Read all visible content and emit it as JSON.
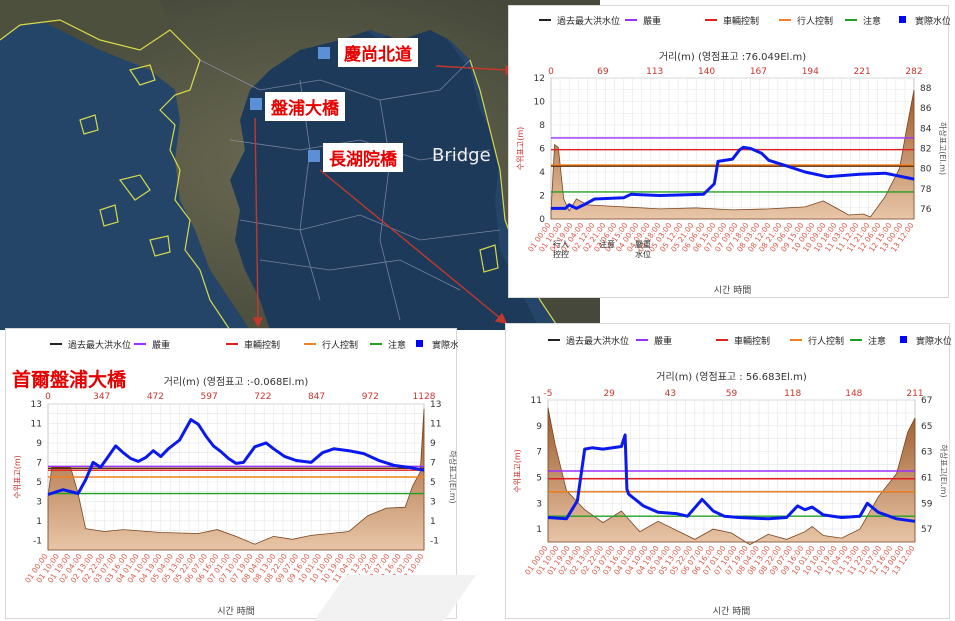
{
  "map": {
    "labels": {
      "gyeongsang": "慶尚北道",
      "banpo": "盤浦大橋",
      "janghowon": "長湖院橋",
      "bridge_word": "Bridge",
      "seoul_banpo": "首爾盤浦大橋"
    },
    "colors": {
      "tag_text": "#e60000",
      "arrow": "#c0392b"
    }
  },
  "legend": {
    "items": [
      {
        "label": "過去最大洪水位",
        "color": "#222222",
        "style": "line"
      },
      {
        "label": "嚴重",
        "color": "#9b30ff",
        "style": "line"
      },
      {
        "label": "車輛控制",
        "color": "#e02020",
        "style": "line"
      },
      {
        "label": "行人控制",
        "color": "#f08020",
        "style": "line"
      },
      {
        "label": "注意",
        "color": "#22a022",
        "style": "line"
      },
      {
        "label": "實際水位",
        "color": "#0000ff",
        "style": "square"
      }
    ]
  },
  "chart_data": [
    {
      "id": "gyeongsang",
      "type": "line",
      "top_title": "거리(m) (영점표고 :76.049El.m)",
      "top_ticks": [
        "0",
        "69",
        "113",
        "140",
        "167",
        "194",
        "221",
        "282"
      ],
      "y_left_label": "수위표고(m)",
      "y_right_label": "하상표고(El.m)",
      "ylim_left": [
        0,
        12
      ],
      "y_left_ticks": [
        0,
        2,
        4,
        6,
        8,
        10,
        12
      ],
      "ylim_right": [
        75,
        89
      ],
      "y_right_ticks": [
        76,
        78,
        80,
        82,
        84,
        86,
        88
      ],
      "xlabel": "시간 時間",
      "x_tick_labels": [
        "01 00:00",
        "01 10:00",
        "01 19:00",
        "02 04:00",
        "02 12:00",
        "02 21:00",
        "03 06:00",
        "03 15:00",
        "04 00:00",
        "04 09:00",
        "04 18:00",
        "05 03:00",
        "05 12:00",
        "05 21:00",
        "06 06:00",
        "06 15:00",
        "07 00:00",
        "07 09:00",
        "07 18:00",
        "08 03:00",
        "08 12:00",
        "08 21:00",
        "09 06:00",
        "09 15:00",
        "10 00:00",
        "10 09:00",
        "10 18:00",
        "11 03:00",
        "11 12:00",
        "11 21:00",
        "12 06:00",
        "12 15:00",
        "13 00:00",
        "13 12:00"
      ],
      "thresholds": [
        {
          "name": "過去最大洪水位",
          "value": 4.5,
          "color": "#5a2d0c"
        },
        {
          "name": "嚴重",
          "value": 6.9,
          "color": "#9b30ff"
        },
        {
          "name": "車輛控制",
          "value": 5.9,
          "color": "#e02020"
        },
        {
          "name": "行人控制",
          "value": 4.6,
          "color": "#f08020"
        },
        {
          "name": "注意",
          "value": 2.3,
          "color": "#22a022"
        }
      ],
      "threshold_labels": [
        "行人\n控控",
        "注意",
        "嚴重\n水位"
      ],
      "actual_water_level": {
        "x": [
          0,
          0.04,
          0.05,
          0.07,
          0.09,
          0.12,
          0.2,
          0.22,
          0.3,
          0.42,
          0.45,
          0.46,
          0.5,
          0.52,
          0.53,
          0.55,
          0.58,
          0.6,
          0.65,
          0.7,
          0.76,
          0.85,
          0.92,
          1.0
        ],
        "y": [
          0.9,
          0.9,
          1.2,
          0.9,
          1.2,
          1.7,
          1.8,
          2.1,
          2.0,
          2.1,
          3.0,
          4.9,
          5.1,
          5.9,
          6.1,
          6.0,
          5.6,
          5.0,
          4.5,
          4.0,
          3.6,
          3.8,
          3.9,
          3.4
        ]
      },
      "riverbed": {
        "x": [
          0,
          0.01,
          0.02,
          0.035,
          0.05,
          0.07,
          0.1,
          0.2,
          0.3,
          0.4,
          0.5,
          0.6,
          0.7,
          0.75,
          0.78,
          0.82,
          0.86,
          0.88,
          0.92,
          0.96,
          0.98,
          1.0
        ],
        "y": [
          75.7,
          82.4,
          82.1,
          77.0,
          75.8,
          77.0,
          76.4,
          76.2,
          76.0,
          76.1,
          75.9,
          76.0,
          76.2,
          76.8,
          76.2,
          75.4,
          75.5,
          75.2,
          77.2,
          80.0,
          84.0,
          87.8
        ]
      }
    },
    {
      "id": "seoul_banpo",
      "type": "line",
      "top_title": "거리(m) (영점표고 :-0.068El.m)",
      "top_ticks": [
        "0",
        "347",
        "472",
        "597",
        "722",
        "847",
        "972",
        "1128"
      ],
      "y_left_label": "수위표고(m)",
      "y_right_label": "하상표고(El.m)",
      "ylim_left": [
        -2,
        13
      ],
      "y_left_ticks": [
        -1,
        1,
        3,
        5,
        7,
        9,
        11,
        13
      ],
      "ylim_right": [
        -2,
        13
      ],
      "y_right_ticks": [
        -1,
        1,
        3,
        5,
        7,
        9,
        11,
        13
      ],
      "xlabel": "시간 時間",
      "x_tick_labels": [
        "01 00:00",
        "01 10:00",
        "01 19:00",
        "02 04:00",
        "02 13:00",
        "02 22:00",
        "03 07:00",
        "03 16:00",
        "04 01:00",
        "04 10:00",
        "04 19:00",
        "05 04:00",
        "05 13:00",
        "05 22:00",
        "06 07:00",
        "06 16:00",
        "07 01:00",
        "07 10:00",
        "07 19:00",
        "08 04:00",
        "08 13:00",
        "08 22:00",
        "09 07:00",
        "09 16:00",
        "10 01:00",
        "10 10:00",
        "10 19:00",
        "11 04:00",
        "11 13:00",
        "11 22:00",
        "12 07:00",
        "12 16:00",
        "13 01:00",
        "13 10:00"
      ],
      "thresholds": [
        {
          "name": "過去最大洪水位",
          "value": 6.4,
          "color": "#5a2d0c"
        },
        {
          "name": "嚴重",
          "value": 6.6,
          "color": "#9b30ff"
        },
        {
          "name": "車輛控制",
          "value": 6.2,
          "color": "#e02020"
        },
        {
          "name": "行人控制",
          "value": 5.5,
          "color": "#f08020"
        },
        {
          "name": "注意",
          "value": 3.8,
          "color": "#22a022"
        }
      ],
      "actual_water_level": {
        "x": [
          0,
          0.04,
          0.08,
          0.1,
          0.12,
          0.14,
          0.16,
          0.18,
          0.2,
          0.22,
          0.24,
          0.26,
          0.28,
          0.3,
          0.32,
          0.35,
          0.38,
          0.4,
          0.42,
          0.44,
          0.46,
          0.48,
          0.5,
          0.52,
          0.55,
          0.58,
          0.6,
          0.63,
          0.66,
          0.7,
          0.73,
          0.76,
          0.8,
          0.84,
          0.88,
          0.92,
          0.96,
          1.0
        ],
        "y": [
          3.7,
          4.2,
          3.8,
          5.2,
          7.0,
          6.5,
          7.6,
          8.7,
          8.0,
          7.4,
          7.1,
          7.5,
          8.2,
          7.6,
          8.4,
          9.3,
          11.4,
          10.9,
          9.7,
          8.7,
          8.1,
          7.4,
          6.9,
          7.0,
          8.6,
          9.0,
          8.4,
          7.6,
          7.2,
          7.0,
          8.0,
          8.4,
          8.2,
          7.9,
          7.2,
          6.7,
          6.5,
          6.2
        ]
      },
      "riverbed": {
        "x": [
          0,
          0.01,
          0.06,
          0.08,
          0.1,
          0.15,
          0.2,
          0.3,
          0.4,
          0.45,
          0.5,
          0.55,
          0.6,
          0.65,
          0.7,
          0.75,
          0.8,
          0.85,
          0.9,
          0.95,
          0.97,
          0.99,
          1.0
        ],
        "y": [
          3.5,
          6.5,
          6.5,
          3.8,
          0.2,
          -0.1,
          0.1,
          -0.2,
          -0.3,
          0.1,
          -0.6,
          -1.4,
          -0.6,
          -0.9,
          -0.5,
          -0.3,
          -0.1,
          1.5,
          2.3,
          2.4,
          4.6,
          6.0,
          12.5
        ]
      }
    },
    {
      "id": "janghowon",
      "type": "line",
      "top_title": "거리(m) (영점표고 : 56.683El.m)",
      "top_ticks": [
        "-5",
        "29",
        "43",
        "59",
        "118",
        "148",
        "211"
      ],
      "y_left_label": "수위표고(m)",
      "y_right_label": "하상표고(El.m)",
      "ylim_left": [
        0,
        11
      ],
      "y_left_ticks": [
        1,
        3,
        5,
        7,
        9,
        11
      ],
      "ylim_right": [
        56,
        67
      ],
      "y_right_ticks": [
        57,
        59,
        61,
        63,
        65,
        67
      ],
      "xlabel": "시간 時間",
      "x_tick_labels": [
        "01 00:00",
        "01 10:00",
        "01 19:00",
        "02 04:00",
        "02 13:00",
        "02 22:00",
        "03 07:00",
        "03 16:00",
        "04 01:00",
        "04 10:00",
        "04 19:00",
        "05 04:00",
        "05 13:00",
        "05 22:00",
        "06 07:00",
        "06 16:00",
        "07 01:00",
        "07 10:00",
        "07 19:00",
        "08 04:00",
        "08 13:00",
        "08 22:00",
        "09 07:00",
        "09 16:00",
        "10 01:00",
        "10 10:00",
        "10 19:00",
        "11 04:00",
        "11 13:00",
        "11 22:00",
        "12 07:00",
        "12 16:00",
        "13 00:00",
        "13 12:00"
      ],
      "thresholds": [
        {
          "name": "過去最大洪水位",
          "value": 3.9,
          "color": "#5a2d0c"
        },
        {
          "name": "嚴重",
          "value": 5.5,
          "color": "#9b30ff"
        },
        {
          "name": "車輛控制",
          "value": 4.9,
          "color": "#e02020"
        },
        {
          "name": "行人控制",
          "value": 3.9,
          "color": "#f08020"
        },
        {
          "name": "注意",
          "value": 2.0,
          "color": "#22a022"
        }
      ],
      "actual_water_level": {
        "x": [
          0,
          0.05,
          0.08,
          0.1,
          0.12,
          0.15,
          0.2,
          0.21,
          0.215,
          0.22,
          0.26,
          0.3,
          0.35,
          0.38,
          0.42,
          0.45,
          0.48,
          0.52,
          0.6,
          0.65,
          0.68,
          0.7,
          0.72,
          0.75,
          0.8,
          0.85,
          0.87,
          0.9,
          0.95,
          1.0
        ],
        "y": [
          1.9,
          1.8,
          3.2,
          7.2,
          7.3,
          7.2,
          7.4,
          8.3,
          4.1,
          3.7,
          2.8,
          2.3,
          2.2,
          2.0,
          3.3,
          2.4,
          2.0,
          1.9,
          1.8,
          1.9,
          2.8,
          2.5,
          2.7,
          2.1,
          1.9,
          2.0,
          3.0,
          2.3,
          1.8,
          1.6
        ]
      },
      "riverbed": {
        "x": [
          0,
          0.02,
          0.05,
          0.1,
          0.15,
          0.2,
          0.25,
          0.3,
          0.4,
          0.45,
          0.5,
          0.55,
          0.6,
          0.65,
          0.7,
          0.72,
          0.75,
          0.8,
          0.85,
          0.9,
          0.95,
          0.98,
          1.0
        ],
        "y": [
          66.4,
          63.5,
          60.0,
          58.5,
          57.5,
          58.4,
          56.8,
          57.6,
          56.2,
          57.0,
          56.7,
          55.8,
          56.6,
          56.2,
          56.8,
          57.2,
          56.5,
          56.3,
          57.0,
          59.5,
          61.3,
          64.5,
          65.6
        ]
      }
    }
  ]
}
